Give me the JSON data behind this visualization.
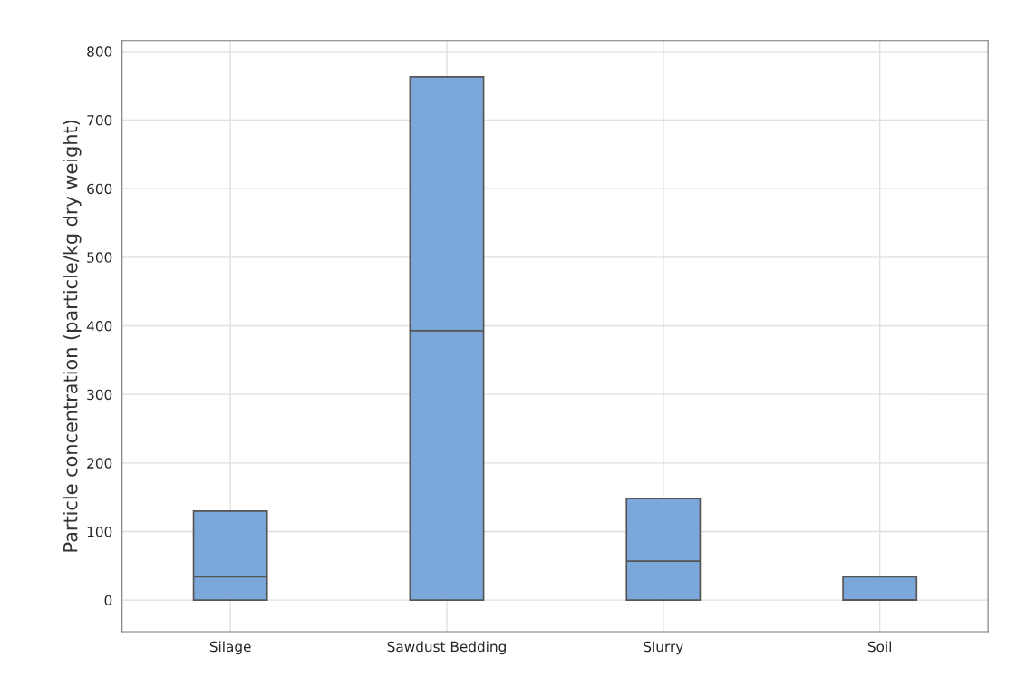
{
  "chart_data": {
    "type": "box",
    "categories": [
      "Silage",
      "Sawdust Bedding",
      "Slurry",
      "Soil"
    ],
    "boxes": [
      {
        "low": 0,
        "q1": 0,
        "median": 34,
        "q3": 130,
        "high": 130
      },
      {
        "low": 0,
        "q1": 0,
        "median": 393,
        "q3": 763,
        "high": 763
      },
      {
        "low": 0,
        "q1": 0,
        "median": 57,
        "q3": 148,
        "high": 148
      },
      {
        "low": 0,
        "q1": 0,
        "median": 0,
        "q3": 34,
        "high": 34
      }
    ],
    "color": "#7ba7da",
    "ylabel": "Particle concentration (particle/kg dry weight)",
    "ylim": [
      -46,
      816
    ],
    "yticks": [
      0,
      100,
      200,
      300,
      400,
      500,
      600,
      700,
      800
    ],
    "grid": true,
    "legend": false
  }
}
